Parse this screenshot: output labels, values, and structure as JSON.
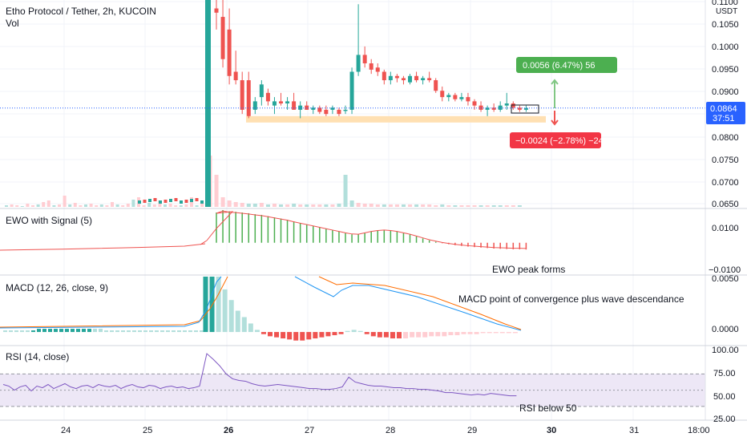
{
  "header": {
    "title": "Etho Protocol / Tether, 2h, KUCOIN",
    "vol_label": "Vol",
    "currency": "USDT"
  },
  "colors": {
    "up": "#26a69a",
    "down": "#ef5350",
    "up_light": "#b2dfdb",
    "down_light": "#ffcdd2",
    "ewo_bar": "#4caf50",
    "support_zone": "#ffe0b2",
    "macd_line": "#2196f3",
    "signal_line": "#ff6d00",
    "rsi_line": "#7e57c2",
    "rsi_band": "#ede7f6",
    "profit_label_bg": "#4caf50",
    "loss_label_bg": "#f23645",
    "last_price_bg": "#2962ff"
  },
  "price_axis": {
    "ticks": [
      "0.1100",
      "0.1050",
      "0.1000",
      "0.0950",
      "0.0900",
      "0.0850",
      "0.0800",
      "0.0750",
      "0.0700",
      "0.0650"
    ],
    "last_price": "0.0864",
    "countdown": "37:51"
  },
  "measure": {
    "profit_label": "0.0056 (6.47%) 56",
    "loss_label": "−0.0024 (−2.78%) −24"
  },
  "ewo": {
    "title": "EWO with Signal (5)",
    "ticks": [
      "0.0100",
      "−0.0100"
    ],
    "annotation": "EWO peak forms"
  },
  "macd": {
    "title": "MACD (12, 26, close, 9)",
    "ticks": [
      "0.0050",
      "0.0000"
    ],
    "annotation": "MACD point of convergence plus wave descendance"
  },
  "rsi": {
    "title": "RSI (14, close)",
    "ticks": [
      "100.00",
      "75.00",
      "50.00",
      "25.00"
    ],
    "annotation": "RSI below 50"
  },
  "time_axis": {
    "labels": [
      "24",
      "25",
      "26",
      "27",
      "28",
      "29",
      "30",
      "31",
      "18:00"
    ],
    "bold": [
      "26",
      "30"
    ]
  },
  "chart_data": {
    "type": "candlestick",
    "title": "Etho Protocol / Tether, 2h, KUCOIN",
    "x": [
      "26",
      "27",
      "28",
      "29"
    ],
    "price_ylim": [
      0.063,
      0.112
    ],
    "candles": [
      {
        "o": 0.11,
        "h": 0.112,
        "l": 0.105,
        "c": 0.109
      },
      {
        "o": 0.108,
        "h": 0.112,
        "l": 0.096,
        "c": 0.098
      },
      {
        "o": 0.105,
        "h": 0.11,
        "l": 0.092,
        "c": 0.094
      },
      {
        "o": 0.095,
        "h": 0.1,
        "l": 0.092,
        "c": 0.093
      },
      {
        "o": 0.093,
        "h": 0.095,
        "l": 0.085,
        "c": 0.086
      },
      {
        "o": 0.093,
        "h": 0.095,
        "l": 0.084,
        "c": 0.0845
      },
      {
        "o": 0.086,
        "h": 0.089,
        "l": 0.085,
        "c": 0.088
      },
      {
        "o": 0.089,
        "h": 0.093,
        "l": 0.087,
        "c": 0.092
      },
      {
        "o": 0.09,
        "h": 0.091,
        "l": 0.087,
        "c": 0.088
      },
      {
        "o": 0.087,
        "h": 0.089,
        "l": 0.085,
        "c": 0.088
      },
      {
        "o": 0.088,
        "h": 0.09,
        "l": 0.087,
        "c": 0.0875
      },
      {
        "o": 0.0875,
        "h": 0.089,
        "l": 0.086,
        "c": 0.088
      },
      {
        "o": 0.088,
        "h": 0.09,
        "l": 0.086,
        "c": 0.086
      },
      {
        "o": 0.086,
        "h": 0.088,
        "l": 0.084,
        "c": 0.087
      },
      {
        "o": 0.087,
        "h": 0.088,
        "l": 0.086,
        "c": 0.086
      },
      {
        "o": 0.086,
        "h": 0.087,
        "l": 0.085,
        "c": 0.0865
      },
      {
        "o": 0.0865,
        "h": 0.087,
        "l": 0.085,
        "c": 0.0855
      },
      {
        "o": 0.086,
        "h": 0.087,
        "l": 0.0845,
        "c": 0.085
      },
      {
        "o": 0.086,
        "h": 0.087,
        "l": 0.085,
        "c": 0.0865
      },
      {
        "o": 0.086,
        "h": 0.0865,
        "l": 0.0845,
        "c": 0.085
      },
      {
        "o": 0.086,
        "h": 0.087,
        "l": 0.085,
        "c": 0.086
      },
      {
        "o": 0.086,
        "h": 0.096,
        "l": 0.085,
        "c": 0.095
      },
      {
        "o": 0.095,
        "h": 0.111,
        "l": 0.094,
        "c": 0.099
      },
      {
        "o": 0.099,
        "h": 0.101,
        "l": 0.096,
        "c": 0.097
      },
      {
        "o": 0.097,
        "h": 0.098,
        "l": 0.0945,
        "c": 0.0955
      },
      {
        "o": 0.096,
        "h": 0.097,
        "l": 0.094,
        "c": 0.095
      },
      {
        "o": 0.095,
        "h": 0.0955,
        "l": 0.092,
        "c": 0.093
      },
      {
        "o": 0.093,
        "h": 0.095,
        "l": 0.092,
        "c": 0.094
      },
      {
        "o": 0.094,
        "h": 0.0945,
        "l": 0.0925,
        "c": 0.0935
      },
      {
        "o": 0.0935,
        "h": 0.094,
        "l": 0.092,
        "c": 0.093
      },
      {
        "o": 0.0925,
        "h": 0.0945,
        "l": 0.092,
        "c": 0.094
      },
      {
        "o": 0.094,
        "h": 0.095,
        "l": 0.0925,
        "c": 0.093
      },
      {
        "o": 0.093,
        "h": 0.094,
        "l": 0.092,
        "c": 0.0935
      },
      {
        "o": 0.0935,
        "h": 0.095,
        "l": 0.0925,
        "c": 0.093
      },
      {
        "o": 0.093,
        "h": 0.0935,
        "l": 0.09,
        "c": 0.0905
      },
      {
        "o": 0.0905,
        "h": 0.0915,
        "l": 0.088,
        "c": 0.089
      },
      {
        "o": 0.089,
        "h": 0.09,
        "l": 0.088,
        "c": 0.0895
      },
      {
        "o": 0.0895,
        "h": 0.09,
        "l": 0.088,
        "c": 0.0885
      },
      {
        "o": 0.0885,
        "h": 0.09,
        "l": 0.088,
        "c": 0.089
      },
      {
        "o": 0.089,
        "h": 0.09,
        "l": 0.087,
        "c": 0.088
      },
      {
        "o": 0.088,
        "h": 0.0885,
        "l": 0.086,
        "c": 0.087
      },
      {
        "o": 0.087,
        "h": 0.088,
        "l": 0.0855,
        "c": 0.086
      },
      {
        "o": 0.086,
        "h": 0.087,
        "l": 0.0845,
        "c": 0.0865
      },
      {
        "o": 0.0865,
        "h": 0.0875,
        "l": 0.0855,
        "c": 0.086
      },
      {
        "o": 0.086,
        "h": 0.088,
        "l": 0.0855,
        "c": 0.087
      },
      {
        "o": 0.087,
        "h": 0.09,
        "l": 0.086,
        "c": 0.0875
      },
      {
        "o": 0.0875,
        "h": 0.088,
        "l": 0.086,
        "c": 0.0865
      },
      {
        "o": 0.0865,
        "h": 0.087,
        "l": 0.0855,
        "c": 0.086
      },
      {
        "o": 0.086,
        "h": 0.087,
        "l": 0.0855,
        "c": 0.0864
      }
    ],
    "support_zone": [
      0.0835,
      0.0845
    ],
    "last_price": 0.0864,
    "ewo_ylim": [
      -0.013,
      0.0135
    ],
    "ewo": [
      0.0125,
      0.0135,
      0.013,
      0.0128,
      0.0125,
      0.0122,
      0.0118,
      0.0115,
      0.011,
      0.0105,
      0.01,
      0.0095,
      0.0088,
      0.0082,
      0.0076,
      0.007,
      0.0064,
      0.0058,
      0.0052,
      0.0046,
      0.004,
      0.0035,
      0.0034,
      0.004,
      0.0046,
      0.005,
      0.0052,
      0.005,
      0.0046,
      0.004,
      0.0034,
      0.0026,
      0.0018,
      0.001,
      0.0004,
      -0.0002,
      -0.0006,
      -0.001,
      -0.0013,
      -0.0016,
      -0.0018,
      -0.002,
      -0.0022,
      -0.0024,
      -0.0025,
      -0.0026,
      -0.0027,
      -0.0027,
      -0.0028
    ],
    "macd_ylim": [
      -0.0012,
      0.0052
    ],
    "macd_hist": [
      0.006,
      0.0058,
      0.0054,
      0.004,
      0.003,
      0.002,
      0.0014,
      0.0008,
      0.0002,
      -0.0002,
      -0.0004,
      -0.0005,
      -0.0006,
      -0.0007,
      -0.0008,
      -0.0008,
      -0.0007,
      -0.0006,
      -0.0005,
      -0.0004,
      -0.0003,
      -0.0002,
      0.0001,
      0.0002,
      0.0001,
      -0.0002,
      -0.0004,
      -0.0005,
      -0.0005,
      -0.0006,
      -0.0006,
      -0.0006,
      -0.0005,
      -0.0005,
      -0.0005,
      -0.0004,
      -0.0004,
      -0.0004,
      -0.0003,
      -0.0003,
      -0.0002,
      -0.0002,
      -0.0002,
      -0.0001,
      -0.0001,
      -0.0001,
      -0.0001,
      -0.0001,
      -0.0001
    ],
    "rsi_ylim": [
      15,
      100
    ],
    "rsi": [
      95,
      88,
      80,
      70,
      64,
      62,
      61,
      58,
      56,
      55,
      56,
      57,
      56,
      55,
      54,
      53,
      52,
      52,
      51,
      51,
      52,
      54,
      66,
      60,
      58,
      56,
      55,
      55,
      54,
      53,
      53,
      52,
      52,
      51,
      51,
      50,
      49,
      47,
      47,
      46,
      45,
      44,
      45,
      44,
      46,
      45,
      44,
      43,
      43
    ]
  }
}
